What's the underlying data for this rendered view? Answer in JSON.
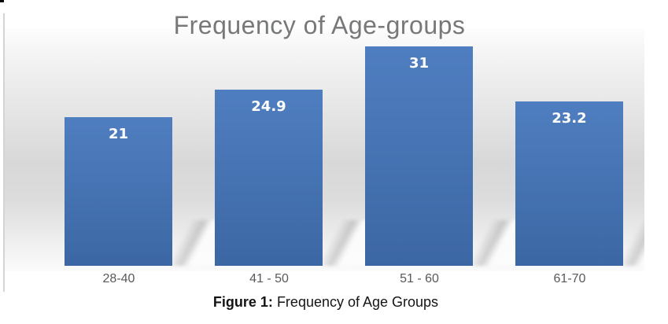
{
  "chart_data": {
    "type": "bar",
    "title": "Frequency of Age-groups",
    "categories": [
      "28-40",
      "41 - 50",
      "51 - 60",
      "61-70"
    ],
    "values": [
      21,
      24.9,
      31,
      23.2
    ],
    "data_labels": [
      "21",
      "24.9",
      "31",
      "23.2"
    ],
    "xlabel": "",
    "ylabel": "",
    "ylim": [
      0,
      33.5
    ],
    "gridlines": false,
    "legend": "none",
    "data_label_position": "inside-top",
    "bar_color_top": "#4f7ec0",
    "bar_color_bottom": "#3c67a4",
    "data_label_color": "#ffffff",
    "title_color": "#77787a",
    "axis_label_color": "#595959",
    "wall_background": "white-to-gray vertical gradient with cast bar shadows"
  },
  "caption": {
    "prefix": "Figure 1:",
    "text": " Frequency of Age Groups"
  }
}
